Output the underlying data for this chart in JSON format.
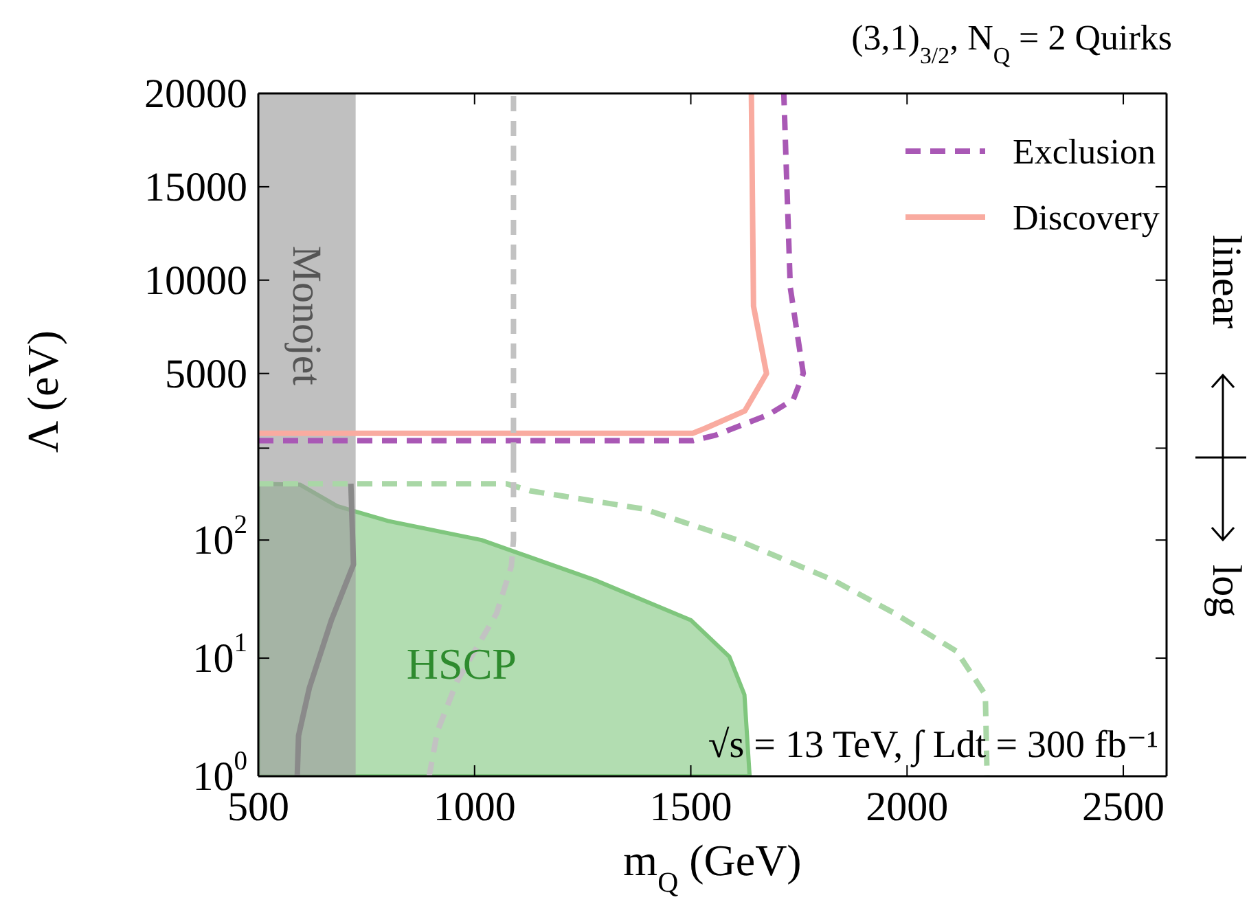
{
  "chart_data": [
    {
      "type": "line",
      "title": "(3,1)$_{3/2}$,  N$_{Q}$ = 2 Quirks",
      "ylabel": "Λ (eV)",
      "xlim": [
        500,
        2600
      ],
      "xticks": [
        500,
        1000,
        1500,
        2000,
        2500
      ],
      "ylim": [
        500,
        20000
      ],
      "yticks": [
        {
          "value": 1000,
          "label": null
        },
        5000,
        10000,
        15000,
        20000
      ],
      "tick_labels": "y",
      "legend": "top right",
      "bands": [
        {
          "axis": "x",
          "from": 500,
          "to": 725,
          "label": "Monojet",
          "color": "#9e9e9e"
        }
      ],
      "annotations": [
        "linear"
      ],
      "series": [
        {
          "name": "Exclusion",
          "color": "#a958b5",
          "line_style": "dashed",
          "x": [
            500,
            1505,
            1558,
            1680,
            1737,
            1760,
            1730,
            1715
          ],
          "values": [
            1400,
            1400,
            1700,
            2800,
            3600,
            5000,
            9600,
            20000
          ]
        },
        {
          "name": "Discovery",
          "color": "#f9aba0",
          "line_style": "solid",
          "x": [
            500,
            1505,
            1537,
            1625,
            1675,
            1645,
            1640
          ],
          "values": [
            1800,
            1800,
            2100,
            3000,
            5000,
            8600,
            20000
          ]
        },
        {
          "color": "#c2c2c2",
          "line_style": "dashed",
          "x": [
            1090,
            1090
          ],
          "values": [
            500,
            20000
          ]
        }
      ]
    },
    {
      "type": "line",
      "xlabel": "m$_{Q}$ (GeV)",
      "xlim": [
        500,
        2600
      ],
      "xticks": [
        500,
        1000,
        1500,
        2000,
        2500
      ],
      "ylim": [
        1,
        500
      ],
      "log": true,
      "yticks": [
        {
          "value": 1,
          "label": "10$^{0}$"
        },
        {
          "value": 10,
          "label": "10$^{1}$"
        },
        {
          "value": 100,
          "label": "10$^{2}$"
        }
      ],
      "bands": [
        {
          "axis": "x",
          "from": 500,
          "to": 725,
          "color": "#9e9e9e"
        }
      ],
      "annotations": [
        {
          "text": "HSCP",
          "x": 970,
          "y": 9
        },
        "√s = 13 TeV,  ∫ Ldt = 300 fb⁻¹",
        "log"
      ],
      "series": [
        {
          "type": "area",
          "color": "#7fc67d",
          "x": [
            500,
            596,
            682,
            800,
            1016,
            1277,
            1500,
            1589,
            1624,
            1636
          ],
          "values": [
            300,
            295,
            194,
            145,
            100,
            46,
            21,
            10.3,
            4.9,
            1
          ]
        },
        {
          "color": "#8a8a8a",
          "line_style": "solid",
          "x": [
            714,
            720,
            669,
            618,
            593,
            590
          ],
          "values": [
            300,
            62,
            21,
            5.6,
            2.2,
            1
          ]
        },
        {
          "color": "#a9d7a6",
          "line_style": "dashed",
          "x": [
            500,
            1073,
            1131,
            1392,
            1608,
            1828,
            1971,
            2115,
            2181,
            2185
          ],
          "values": [
            300,
            300,
            260,
            183,
            100,
            46,
            24,
            11.4,
            4.9,
            1
          ]
        },
        {
          "color": "#c2c2c2",
          "line_style": "dashed",
          "x": [
            1090,
            1090,
            1085,
            1051,
            959,
            914,
            895
          ],
          "values": [
            500,
            100,
            60,
            24,
            6.3,
            2.4,
            1
          ]
        }
      ]
    }
  ]
}
